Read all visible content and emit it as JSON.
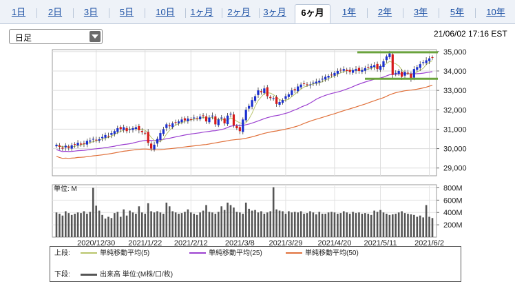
{
  "tabs": [
    {
      "label": "1日",
      "active": false
    },
    {
      "label": "2日",
      "active": false
    },
    {
      "label": "3日",
      "active": false
    },
    {
      "label": "5日",
      "active": false
    },
    {
      "label": "10日",
      "active": false
    },
    {
      "label": "1ヶ月",
      "active": false
    },
    {
      "label": "2ヶ月",
      "active": false
    },
    {
      "label": "3ヶ月",
      "active": false
    },
    {
      "label": "6ヶ月",
      "active": true
    },
    {
      "label": "1年",
      "active": false
    },
    {
      "label": "2年",
      "active": false
    },
    {
      "label": "3年",
      "active": false
    },
    {
      "label": "5年",
      "active": false
    },
    {
      "label": "10年",
      "active": false
    }
  ],
  "toolbar": {
    "interval_value": "日足",
    "timestamp": "21/06/02 17:16 EST"
  },
  "legend": {
    "upper_label": "上段:",
    "lower_label": "下段:",
    "items": [
      {
        "text": "単純移動平均(5)",
        "color": "#b8c46a"
      },
      {
        "text": "単純移動平均(25)",
        "color": "#9b3fd0"
      },
      {
        "text": "単純移動平均(50)",
        "color": "#e0703a"
      }
    ],
    "volume_item": {
      "text": "出来高 単位:(M株/口/枚)",
      "color": "#555555"
    }
  },
  "chart_data": {
    "type": "candlestick",
    "price_ylim": [
      28600,
      35100
    ],
    "price_ticks": [
      "35,000",
      "34,000",
      "33,000",
      "32,000",
      "31,000",
      "30,000",
      "29,000"
    ],
    "price_tick_values": [
      35000,
      34000,
      33000,
      32000,
      31000,
      30000,
      29000
    ],
    "volume_unit_label": "単位: M",
    "volume_ylim": [
      0,
      850
    ],
    "volume_ticks": [
      "800M",
      "600M",
      "400M",
      "200M"
    ],
    "volume_tick_values": [
      800,
      600,
      400,
      200
    ],
    "x_labels": [
      "2020/12/30",
      "2021/1/22",
      "2021/2/12",
      "2021/3/8",
      "2021/3/29",
      "2021/4/20",
      "2021/5/11",
      "2021/6/2"
    ],
    "x_label_index": [
      13,
      29,
      44,
      60,
      75,
      91,
      106,
      122
    ],
    "colors": {
      "up": "#1a2fcf",
      "down": "#d61a1a",
      "ma5": "#b8c46a",
      "ma25": "#9b3fd0",
      "ma50": "#e0703a",
      "volume": "#555555",
      "highlight": "#6aa33c"
    },
    "closes": [
      30200,
      30090,
      30000,
      30150,
      30040,
      30170,
      30200,
      30300,
      30210,
      30250,
      30400,
      30420,
      30500,
      30450,
      30480,
      30600,
      30700,
      30650,
      30800,
      30900,
      31050,
      31000,
      31100,
      30900,
      31000,
      31050,
      31100,
      30950,
      30850,
      30800,
      30300,
      30000,
      30200,
      30500,
      30800,
      31000,
      31250,
      31150,
      31300,
      31350,
      31400,
      31500,
      31450,
      31550,
      31500,
      31600,
      31550,
      31650,
      31700,
      31400,
      31600,
      31700,
      31250,
      31500,
      31600,
      31300,
      31700,
      31800,
      31200,
      31050,
      30900,
      31500,
      32000,
      32200,
      32500,
      32700,
      33000,
      32900,
      33100,
      32700,
      32600,
      32600,
      32300,
      32400,
      32500,
      32700,
      32800,
      33000,
      33000,
      33200,
      33300,
      33350,
      33300,
      33300,
      33400,
      33450,
      33500,
      33600,
      33700,
      33750,
      33800,
      33900,
      34000,
      34050,
      34100,
      34000,
      33950,
      34050,
      34100,
      34000,
      34050,
      34150,
      34200,
      34250,
      34300,
      34100,
      34250,
      34500,
      34750,
      34900,
      33800,
      33900,
      34000,
      33700,
      33950,
      33900,
      33600,
      34100,
      34200,
      34350,
      34450,
      34550,
      34650,
      34700
    ],
    "volumes": [
      400,
      380,
      350,
      420,
      390,
      360,
      380,
      400,
      390,
      420,
      380,
      410,
      800,
      510,
      430,
      360,
      300,
      330,
      310,
      390,
      410,
      330,
      450,
      350,
      430,
      400,
      380,
      500,
      400,
      380,
      550,
      420,
      400,
      420,
      400,
      380,
      560,
      500,
      420,
      400,
      380,
      390,
      410,
      450,
      400,
      380,
      360,
      400,
      430,
      520,
      410,
      400,
      380,
      410,
      500,
      440,
      560,
      520,
      480,
      410,
      400,
      380,
      560,
      460,
      430,
      440,
      400,
      420,
      380,
      400,
      420,
      810,
      450,
      430,
      420,
      380,
      420,
      400,
      410,
      400,
      420,
      380,
      390,
      420,
      400,
      370,
      410,
      380,
      380,
      400,
      410,
      400,
      380,
      390,
      420,
      400,
      380,
      410,
      390,
      400,
      380,
      390,
      380,
      360,
      430,
      410,
      440,
      400,
      380,
      360,
      370,
      380,
      400,
      420,
      390,
      380,
      370,
      360,
      330,
      350,
      320,
      520,
      330,
      310
    ]
  }
}
